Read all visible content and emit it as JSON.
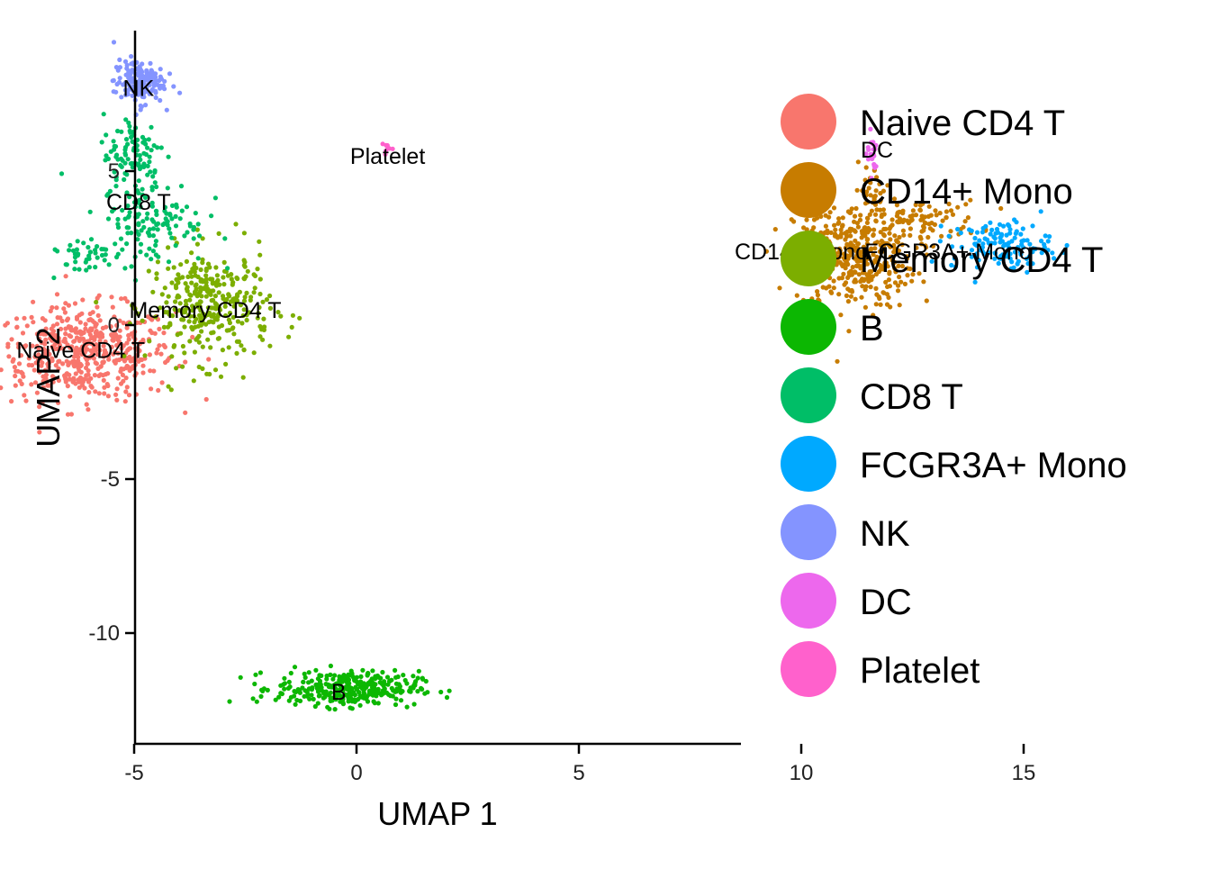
{
  "chart_data": {
    "type": "scatter",
    "xlabel": "UMAP 1",
    "ylabel": "UMAP 2",
    "xlim": [
      -9.8,
      17
    ],
    "ylim": [
      -13.5,
      9.7
    ],
    "x_ticks": [
      -5,
      0,
      5,
      10,
      15
    ],
    "y_ticks": [
      -10,
      -5,
      0,
      5
    ],
    "legend_position": "right",
    "grid": false,
    "clusters": [
      {
        "name": "Naive CD4 T",
        "color": "#F8766D",
        "label_at": [
          -6.2,
          -0.8
        ],
        "blobs": [
          {
            "cx": -6.1,
            "cy": -0.9,
            "sx": 1.25,
            "sy": 0.95,
            "n": 520
          }
        ]
      },
      {
        "name": "CD14+ Mono",
        "color": "#C77C00",
        "label_at": [
          10.0,
          2.4
        ],
        "blobs": [
          {
            "cx": 11.2,
            "cy": 2.2,
            "sx": 0.85,
            "sy": 1.05,
            "n": 380
          },
          {
            "cx": 12.6,
            "cy": 3.4,
            "sx": 0.9,
            "sy": 0.4,
            "n": 90
          },
          {
            "cx": 11.6,
            "cy": 4.4,
            "sx": 0.25,
            "sy": 0.5,
            "n": 30
          }
        ]
      },
      {
        "name": "Memory CD4 T",
        "color": "#7CAE00",
        "label_at": [
          -3.4,
          0.5
        ],
        "blobs": [
          {
            "cx": -3.3,
            "cy": 0.6,
            "sx": 0.85,
            "sy": 1.15,
            "n": 330
          }
        ]
      },
      {
        "name": "B",
        "color": "#0CB702",
        "label_at": [
          -0.4,
          -11.9
        ],
        "blobs": [
          {
            "cx": -0.2,
            "cy": -11.8,
            "sx": 1.0,
            "sy": 0.35,
            "n": 340
          }
        ]
      },
      {
        "name": "CD8 T",
        "color": "#00BE67",
        "label_at": [
          -4.9,
          4.0
        ],
        "blobs": [
          {
            "cx": -5.0,
            "cy": 5.6,
            "sx": 0.45,
            "sy": 0.8,
            "n": 90
          },
          {
            "cx": -4.6,
            "cy": 3.4,
            "sx": 0.75,
            "sy": 0.9,
            "n": 130
          },
          {
            "cx": -6.2,
            "cy": 2.3,
            "sx": 0.5,
            "sy": 0.4,
            "n": 40
          }
        ]
      },
      {
        "name": "FCGR3A+ Mono",
        "color": "#00A9FF",
        "label_at": [
          13.3,
          2.4
        ],
        "blobs": [
          {
            "cx": 14.5,
            "cy": 2.6,
            "sx": 0.7,
            "sy": 0.5,
            "n": 130
          }
        ]
      },
      {
        "name": "NK",
        "color": "#8494FF",
        "label_at": [
          -4.9,
          7.7
        ],
        "blobs": [
          {
            "cx": -4.9,
            "cy": 7.9,
            "sx": 0.35,
            "sy": 0.45,
            "n": 150
          }
        ]
      },
      {
        "name": "DC",
        "color": "#ED68ED",
        "label_at": [
          11.7,
          5.7
        ],
        "blobs": [
          {
            "cx": 11.6,
            "cy": 5.6,
            "sx": 0.08,
            "sy": 0.45,
            "n": 22
          }
        ]
      },
      {
        "name": "Platelet",
        "color": "#FF61CC",
        "label_at": [
          0.7,
          5.5
        ],
        "blobs": [
          {
            "cx": 0.7,
            "cy": 5.75,
            "sx": 0.08,
            "sy": 0.12,
            "n": 8
          }
        ]
      }
    ]
  }
}
